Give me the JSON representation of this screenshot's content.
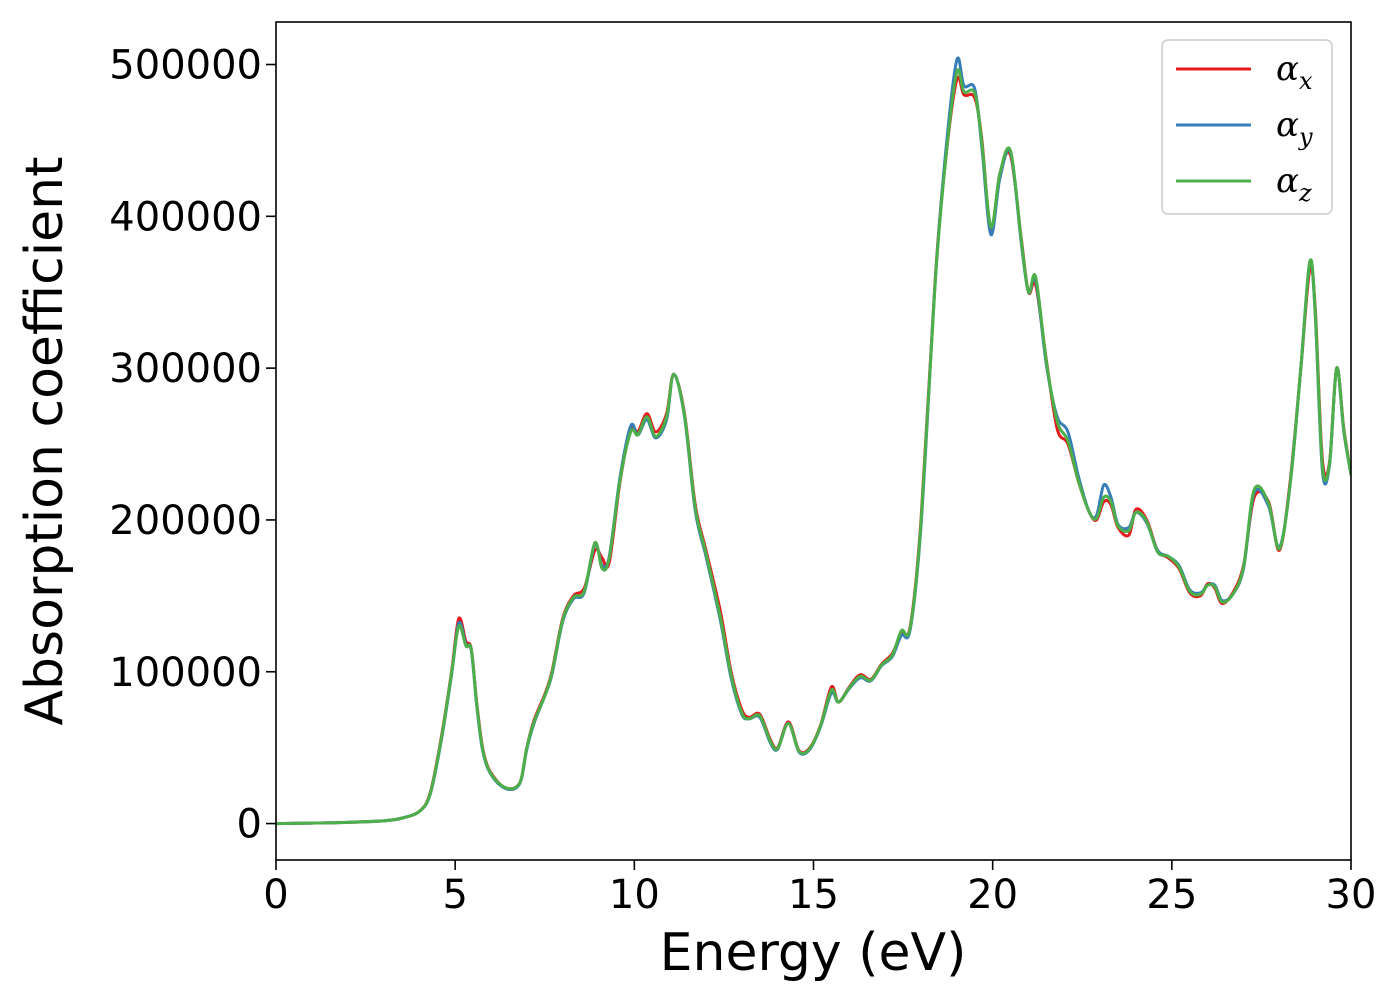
{
  "chart_data": {
    "type": "line",
    "xlabel": "Energy (eV)",
    "ylabel": "Absorption coefficient",
    "xlim": [
      0,
      30
    ],
    "ylim": [
      -24000,
      528000
    ],
    "xticks": [
      0,
      5,
      10,
      15,
      20,
      25,
      30
    ],
    "yticks": [
      0,
      100000,
      200000,
      300000,
      400000,
      500000
    ],
    "xtick_labels": [
      "0",
      "5",
      "10",
      "15",
      "20",
      "25",
      "30"
    ],
    "ytick_labels": [
      "0",
      "100000",
      "200000",
      "300000",
      "400000",
      "500000"
    ],
    "grid": false,
    "legend": {
      "placement": "top-right",
      "entries": [
        {
          "symbol": "α",
          "subscript": "x"
        },
        {
          "symbol": "α",
          "subscript": "y"
        },
        {
          "symbol": "α",
          "subscript": "z"
        }
      ]
    },
    "series": [
      {
        "name": "αx",
        "color": "#e41a1c",
        "x": [
          0,
          1,
          2,
          3,
          3.5,
          4,
          4.3,
          4.6,
          4.9,
          5.1,
          5.3,
          5.45,
          5.6,
          5.75,
          5.9,
          6.1,
          6.3,
          6.5,
          6.7,
          6.85,
          7.0,
          7.2,
          7.5,
          7.7,
          8.0,
          8.3,
          8.6,
          8.9,
          9.1,
          9.3,
          9.6,
          9.9,
          10.1,
          10.35,
          10.6,
          10.9,
          11.1,
          11.4,
          11.7,
          12.0,
          12.4,
          12.7,
          13.0,
          13.2,
          13.5,
          13.8,
          14.0,
          14.3,
          14.6,
          14.9,
          15.2,
          15.5,
          15.7,
          16.0,
          16.3,
          16.6,
          16.9,
          17.2,
          17.45,
          17.7,
          18.0,
          18.4,
          18.7,
          19.0,
          19.2,
          19.5,
          19.7,
          19.95,
          20.2,
          20.5,
          20.8,
          21.0,
          21.2,
          21.5,
          21.8,
          22.1,
          22.4,
          22.7,
          22.9,
          23.1,
          23.3,
          23.5,
          23.8,
          24.0,
          24.3,
          24.6,
          24.9,
          25.2,
          25.5,
          25.8,
          26.0,
          26.2,
          26.4,
          26.7,
          27.0,
          27.3,
          27.7,
          28.0,
          28.3,
          28.6,
          28.85,
          29.0,
          29.2,
          29.4,
          29.6,
          29.8,
          30.0
        ],
        "y": [
          0,
          300,
          800,
          1800,
          3500,
          8000,
          20000,
          55000,
          100000,
          135000,
          120000,
          115000,
          80000,
          52000,
          38000,
          30000,
          25000,
          23000,
          24000,
          30000,
          50000,
          68000,
          85000,
          100000,
          135000,
          150000,
          155000,
          180000,
          175000,
          172000,
          225000,
          260000,
          258000,
          270000,
          258000,
          270000,
          296000,
          270000,
          210000,
          180000,
          140000,
          100000,
          75000,
          70000,
          72000,
          55000,
          50000,
          67000,
          48000,
          50000,
          65000,
          90000,
          80000,
          90000,
          98000,
          95000,
          105000,
          112000,
          125000,
          130000,
          200000,
          360000,
          440000,
          490000,
          480000,
          478000,
          450000,
          390000,
          428000,
          440000,
          385000,
          350000,
          355000,
          305000,
          260000,
          250000,
          225000,
          205000,
          200000,
          212000,
          210000,
          195000,
          190000,
          207000,
          200000,
          180000,
          175000,
          168000,
          152000,
          150000,
          158000,
          155000,
          145000,
          152000,
          170000,
          215000,
          212000,
          180000,
          225000,
          300000,
          365000,
          340000,
          240000,
          238000,
          300000,
          260000,
          230000
        ]
      },
      {
        "name": "αy",
        "color": "#377eb8",
        "x": [
          0,
          1,
          2,
          3,
          3.5,
          4,
          4.3,
          4.6,
          4.9,
          5.1,
          5.3,
          5.45,
          5.6,
          5.75,
          5.9,
          6.1,
          6.3,
          6.5,
          6.7,
          6.85,
          7.0,
          7.2,
          7.5,
          7.7,
          8.0,
          8.3,
          8.6,
          8.9,
          9.1,
          9.3,
          9.6,
          9.9,
          10.1,
          10.35,
          10.6,
          10.9,
          11.1,
          11.4,
          11.7,
          12.0,
          12.4,
          12.7,
          13.0,
          13.2,
          13.5,
          13.8,
          14.0,
          14.3,
          14.6,
          14.9,
          15.2,
          15.5,
          15.7,
          16.0,
          16.3,
          16.6,
          16.9,
          17.2,
          17.45,
          17.7,
          18.0,
          18.4,
          18.7,
          19.0,
          19.2,
          19.5,
          19.7,
          19.95,
          20.2,
          20.5,
          20.8,
          21.0,
          21.2,
          21.5,
          21.8,
          22.1,
          22.4,
          22.7,
          22.9,
          23.1,
          23.3,
          23.5,
          23.8,
          24.0,
          24.3,
          24.6,
          24.9,
          25.2,
          25.5,
          25.8,
          26.0,
          26.2,
          26.4,
          26.7,
          27.0,
          27.3,
          27.7,
          28.0,
          28.3,
          28.6,
          28.85,
          29.0,
          29.2,
          29.4,
          29.6,
          29.8,
          30.0
        ],
        "y": [
          0,
          300,
          800,
          1800,
          3500,
          8000,
          19000,
          53000,
          98000,
          132000,
          118000,
          114000,
          78000,
          50000,
          37000,
          29000,
          24500,
          22500,
          23500,
          29500,
          49000,
          66000,
          84000,
          98000,
          133000,
          148000,
          152000,
          184000,
          170000,
          176000,
          228000,
          262000,
          256000,
          266000,
          254000,
          266000,
          296000,
          268000,
          206000,
          176000,
          134000,
          96000,
          72000,
          69000,
          70000,
          53000,
          49000,
          66000,
          47000,
          49000,
          64000,
          86000,
          80000,
          89000,
          96000,
          94000,
          104000,
          110000,
          124000,
          128000,
          196000,
          358000,
          445000,
          503000,
          486000,
          484000,
          445000,
          388000,
          425000,
          442000,
          382000,
          350000,
          358000,
          302000,
          268000,
          258000,
          228000,
          205000,
          203000,
          223000,
          215000,
          197000,
          195000,
          205000,
          198000,
          180000,
          176000,
          170000,
          154000,
          152000,
          157000,
          157000,
          147000,
          151000,
          168000,
          218000,
          209000,
          182000,
          223000,
          300000,
          370000,
          336000,
          233000,
          236000,
          300000,
          258000,
          230000
        ]
      },
      {
        "name": "αz",
        "color": "#4daf4a",
        "x": [
          0,
          1,
          2,
          3,
          3.5,
          4,
          4.3,
          4.6,
          4.9,
          5.1,
          5.3,
          5.45,
          5.6,
          5.75,
          5.9,
          6.1,
          6.3,
          6.5,
          6.7,
          6.85,
          7.0,
          7.2,
          7.5,
          7.7,
          8.0,
          8.3,
          8.6,
          8.9,
          9.1,
          9.3,
          9.6,
          9.9,
          10.1,
          10.35,
          10.6,
          10.9,
          11.1,
          11.4,
          11.7,
          12.0,
          12.4,
          12.7,
          13.0,
          13.2,
          13.5,
          13.8,
          14.0,
          14.3,
          14.6,
          14.9,
          15.2,
          15.5,
          15.7,
          16.0,
          16.3,
          16.6,
          16.9,
          17.2,
          17.45,
          17.7,
          18.0,
          18.4,
          18.7,
          19.0,
          19.2,
          19.5,
          19.7,
          19.95,
          20.2,
          20.5,
          20.8,
          21.0,
          21.2,
          21.5,
          21.8,
          22.1,
          22.4,
          22.7,
          22.9,
          23.1,
          23.3,
          23.5,
          23.8,
          24.0,
          24.3,
          24.6,
          24.9,
          25.2,
          25.5,
          25.8,
          26.0,
          26.2,
          26.4,
          26.7,
          27.0,
          27.3,
          27.7,
          28.0,
          28.3,
          28.6,
          28.85,
          29.0,
          29.2,
          29.4,
          29.6,
          29.8,
          30.0
        ],
        "y": [
          0,
          300,
          800,
          1800,
          3500,
          8000,
          19500,
          54000,
          99000,
          130000,
          117000,
          115000,
          79000,
          51000,
          37500,
          29500,
          25000,
          23000,
          24000,
          30000,
          50000,
          67000,
          84000,
          99000,
          134000,
          149000,
          153000,
          185000,
          168000,
          175000,
          226000,
          258000,
          256000,
          268000,
          255000,
          268000,
          296000,
          269000,
          208000,
          178000,
          136000,
          98000,
          73000,
          69000,
          71000,
          54000,
          49500,
          66000,
          47500,
          49500,
          64500,
          88000,
          80000,
          89500,
          97000,
          94500,
          104500,
          111000,
          127000,
          129000,
          198000,
          358000,
          440000,
          495000,
          482000,
          481000,
          448000,
          393000,
          428000,
          443000,
          384000,
          350000,
          360000,
          304000,
          265000,
          252000,
          225000,
          205000,
          201000,
          215000,
          212000,
          196000,
          193000,
          205000,
          199000,
          179000,
          176000,
          169000,
          153000,
          151000,
          157000,
          156000,
          146000,
          151000,
          169000,
          220000,
          211000,
          181000,
          223000,
          300000,
          370000,
          338000,
          236000,
          237000,
          300000,
          259000,
          230000
        ]
      }
    ]
  }
}
